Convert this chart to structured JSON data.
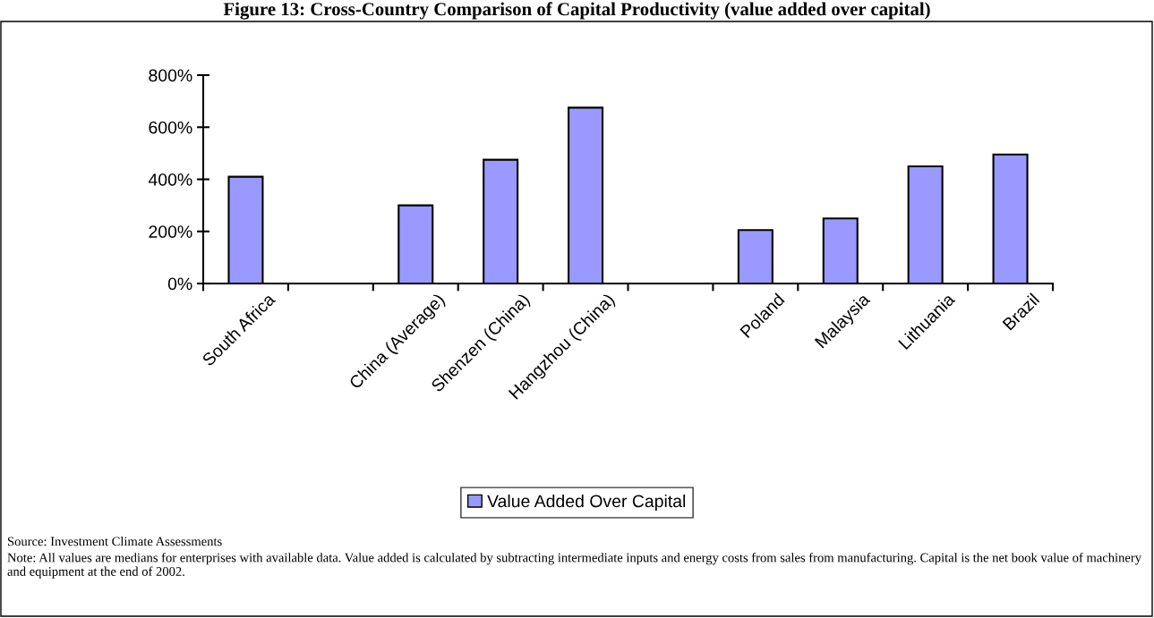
{
  "chart_data": {
    "type": "bar",
    "title": "Figure 13: Cross-Country Comparison of Capital Productivity (value added over capital)",
    "categories": [
      "South Africa",
      null,
      "China (Average)",
      "Shenzen (China)",
      "Hangzhou (China)",
      null,
      "Poland",
      "Malaysia",
      "Lithuania",
      "Brazil"
    ],
    "series": [
      {
        "name": "Value Added Over Capital",
        "color": "#9999ff",
        "values": [
          410,
          null,
          300,
          475,
          675,
          null,
          205,
          250,
          450,
          495
        ]
      }
    ],
    "ylim": [
      0,
      800
    ],
    "yticks": [
      {
        "value": 0,
        "label": "0%"
      },
      {
        "value": 200,
        "label": "200%"
      },
      {
        "value": 400,
        "label": "400%"
      },
      {
        "value": 600,
        "label": "600%"
      },
      {
        "value": 800,
        "label": "800%"
      }
    ],
    "grid": false,
    "legend": "bottom",
    "annotations": [
      "Source: Investment Climate Assessments",
      "Note: All values are medians for enterprises with available data. Value added is calculated by subtracting intermediate inputs and energy costs from sales from manufacturing. Capital is the net book value of machinery and equipment at the end of 2002."
    ]
  }
}
